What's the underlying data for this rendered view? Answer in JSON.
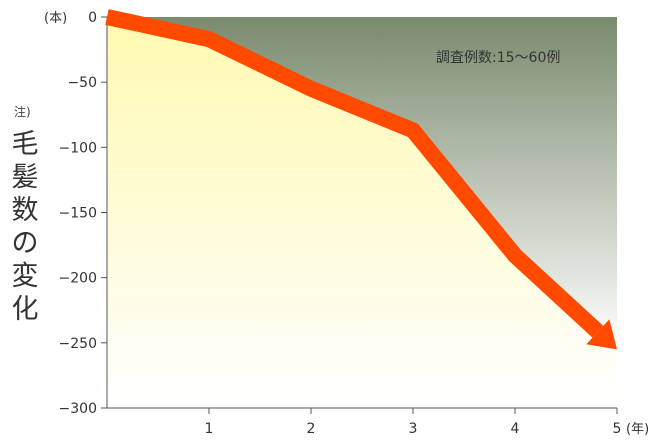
{
  "chart_data": {
    "type": "line",
    "title": "",
    "ylabel": "毛髪数の変化",
    "ylabel_note": "注)",
    "y_unit": "(本)",
    "x_unit": "(年)",
    "annotation": "調査例数:15〜60例",
    "x": [
      0,
      1,
      2,
      3,
      4,
      5
    ],
    "xticks": [
      "1",
      "2",
      "3",
      "4",
      "5"
    ],
    "yticks": [
      "0",
      "−50",
      "−100",
      "−150",
      "−200",
      "−250",
      "−300"
    ],
    "xlim": [
      0,
      5
    ],
    "ylim": [
      -300,
      0
    ],
    "series": [
      {
        "values": [
          0,
          -17,
          -55,
          -87,
          -183,
          -255
        ]
      }
    ],
    "grid": false,
    "colors": {
      "line": "#ff4a00",
      "fill_top": "#fff9b0",
      "fill_bottom": "#ffffff",
      "shade_top": "#7a8a6e",
      "shade_bottom": "#ffffff"
    }
  }
}
